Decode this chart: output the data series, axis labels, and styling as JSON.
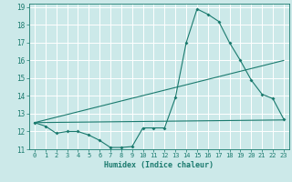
{
  "xlabel": "Humidex (Indice chaleur)",
  "bg_color": "#cce9e9",
  "grid_color": "#ffffff",
  "line_color": "#1a7a6e",
  "xlim": [
    -0.5,
    23.5
  ],
  "ylim": [
    11,
    19.2
  ],
  "xticks": [
    0,
    1,
    2,
    3,
    4,
    5,
    6,
    7,
    8,
    9,
    10,
    11,
    12,
    13,
    14,
    15,
    16,
    17,
    18,
    19,
    20,
    21,
    22,
    23
  ],
  "yticks": [
    11,
    12,
    13,
    14,
    15,
    16,
    17,
    18,
    19
  ],
  "line1_x": [
    0,
    1,
    2,
    3,
    4,
    5,
    6,
    7,
    8,
    9,
    10,
    11,
    12,
    13,
    14,
    15,
    16,
    17,
    18,
    19,
    20,
    21,
    22,
    23
  ],
  "line1_y": [
    12.5,
    12.3,
    11.9,
    12.0,
    12.0,
    11.8,
    11.5,
    11.1,
    11.1,
    11.15,
    12.2,
    12.2,
    12.2,
    13.9,
    17.0,
    18.9,
    18.6,
    18.2,
    17.0,
    16.0,
    14.9,
    14.1,
    13.85,
    12.7
  ],
  "line2_x": [
    0,
    23
  ],
  "line2_y": [
    12.5,
    12.65
  ],
  "line3_x": [
    0,
    23
  ],
  "line3_y": [
    12.5,
    16.0
  ]
}
